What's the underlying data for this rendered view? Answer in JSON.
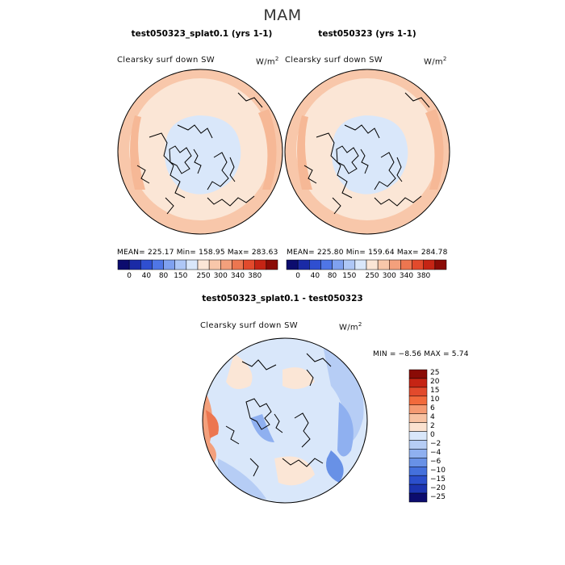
{
  "title": "MAM",
  "panels": [
    {
      "title": "test050323_splat0.1 (yrs 1-1)",
      "variable": "Clearsky surf down SW",
      "units_base": "W/m",
      "units_exp": "2",
      "stats": "MEAN= 225.17   Min= 158.95   Max= 283.63"
    },
    {
      "title": "test050323 (yrs 1-1)",
      "variable": "Clearsky surf down SW",
      "units_base": "W/m",
      "units_exp": "2",
      "stats": "MEAN= 225.80   Min= 159.64   Max= 284.78"
    },
    {
      "title": "test050323_splat0.1 - test050323",
      "variable": "Clearsky surf down SW",
      "units_base": "W/m",
      "units_exp": "2",
      "stats": "MIN =   −8.56  MAX =    5.74"
    }
  ],
  "colorbar_top": {
    "colors": [
      "#0c0c6e",
      "#1a2aa6",
      "#2f4fd0",
      "#4f76e6",
      "#7fa1f0",
      "#aec7f6",
      "#d9e7fa",
      "#fbe6d6",
      "#f8c7aa",
      "#f3a07c",
      "#ec7650",
      "#e24a2c",
      "#c52414",
      "#8a0b06"
    ],
    "labels": [
      "0",
      "40",
      "80",
      "150",
      "250",
      "300",
      "340",
      "380"
    ]
  },
  "colorbar_diff": {
    "colors": [
      "#8a0b06",
      "#c52414",
      "#e24a2c",
      "#f26a3c",
      "#f59a72",
      "#f8c2a2",
      "#fbe2d0",
      "#d9e7fa",
      "#b6cdf5",
      "#8fb0f0",
      "#6891e6",
      "#4470dc",
      "#2b4fcc",
      "#1c34b0",
      "#0c0c6e"
    ],
    "labels": [
      "25",
      "20",
      "15",
      "10",
      "6",
      "4",
      "2",
      "0",
      "−2",
      "−4",
      "−6",
      "−10",
      "−15",
      "−20",
      "−25"
    ]
  },
  "colors": {
    "land_outline": "#000000",
    "polar_fill": "#d9e7fa",
    "mid_fill": "#fbe6d6",
    "outer_fill": "#f8c7aa"
  }
}
